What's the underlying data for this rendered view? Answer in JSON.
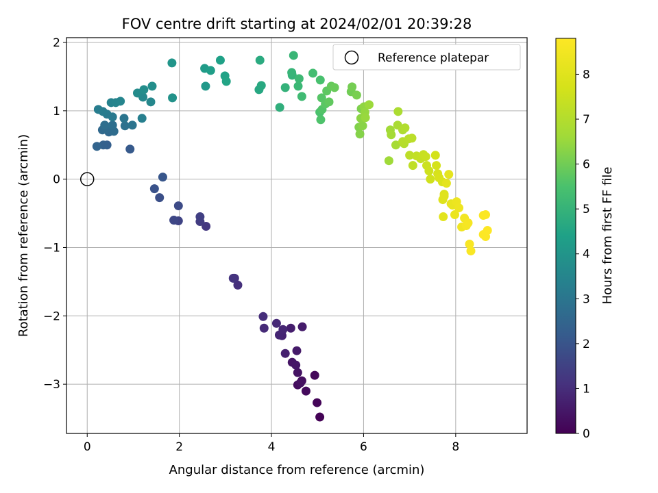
{
  "chart_data": {
    "type": "scatter",
    "title": "FOV centre drift starting at 2024/02/01 20:39:28",
    "xlabel": "Angular distance from reference (arcmin)",
    "ylabel": "Rotation from reference (arcmin)",
    "xlim": [
      -0.45,
      9.55
    ],
    "ylim": [
      -3.72,
      2.07
    ],
    "xticks": [
      0,
      2,
      4,
      6,
      8
    ],
    "yticks": [
      -3,
      -2,
      -1,
      0,
      1,
      2
    ],
    "grid": true,
    "legend": {
      "placement": "upper right",
      "entries": [
        "Reference platepar"
      ]
    },
    "reference_point": {
      "label": "Reference platepar",
      "x": 0,
      "y": 0
    },
    "colorbar": {
      "label": "Hours from first FF file",
      "min": 0,
      "max": 8.8,
      "ticks": [
        0,
        1,
        2,
        3,
        4,
        5,
        6,
        7,
        8
      ],
      "colormap": "viridis"
    },
    "points": [
      [
        5.05,
        -3.48,
        0.05
      ],
      [
        4.99,
        -3.27,
        0.1
      ],
      [
        4.94,
        -2.87,
        0.15
      ],
      [
        4.75,
        -3.1,
        0.2
      ],
      [
        4.57,
        -3.01,
        0.25
      ],
      [
        4.66,
        -2.95,
        0.3
      ],
      [
        4.63,
        -2.98,
        0.35
      ],
      [
        4.57,
        -2.83,
        0.4
      ],
      [
        4.45,
        -2.68,
        0.45
      ],
      [
        4.53,
        -2.72,
        0.5
      ],
      [
        4.55,
        -2.51,
        0.55
      ],
      [
        4.67,
        -2.16,
        0.6
      ],
      [
        4.42,
        -2.18,
        0.65
      ],
      [
        4.3,
        -2.55,
        0.7
      ],
      [
        4.23,
        -2.29,
        0.75
      ],
      [
        4.17,
        -2.28,
        0.8
      ],
      [
        4.25,
        -2.2,
        0.85
      ],
      [
        4.11,
        -2.11,
        0.9
      ],
      [
        3.84,
        -2.18,
        0.95
      ],
      [
        3.82,
        -2.01,
        1.0
      ],
      [
        3.27,
        -1.55,
        1.05
      ],
      [
        3.2,
        -1.45,
        1.1
      ],
      [
        3.17,
        -1.45,
        1.15
      ],
      [
        2.58,
        -0.69,
        1.25
      ],
      [
        2.45,
        -0.62,
        1.35
      ],
      [
        2.45,
        -0.55,
        1.45
      ],
      [
        1.98,
        -0.61,
        1.55
      ],
      [
        1.88,
        -0.6,
        1.65
      ],
      [
        1.98,
        -0.39,
        1.75
      ],
      [
        1.57,
        -0.27,
        1.85
      ],
      [
        1.46,
        -0.14,
        1.95
      ],
      [
        1.64,
        0.03,
        2.05
      ],
      [
        0.93,
        0.44,
        2.15
      ],
      [
        0.43,
        0.5,
        2.3
      ],
      [
        0.35,
        0.5,
        2.35
      ],
      [
        0.21,
        0.48,
        2.45
      ],
      [
        0.47,
        0.69,
        2.55
      ],
      [
        0.33,
        0.72,
        2.6
      ],
      [
        0.4,
        0.73,
        2.65
      ],
      [
        0.58,
        0.7,
        2.7
      ],
      [
        0.38,
        0.79,
        2.75
      ],
      [
        0.55,
        0.79,
        2.8
      ],
      [
        0.82,
        0.78,
        2.85
      ],
      [
        0.98,
        0.79,
        2.95
      ],
      [
        0.8,
        0.89,
        3.0
      ],
      [
        0.55,
        0.91,
        3.1
      ],
      [
        0.43,
        0.95,
        3.15
      ],
      [
        0.34,
        0.99,
        3.2
      ],
      [
        0.24,
        1.02,
        3.25
      ],
      [
        1.19,
        0.89,
        3.3
      ],
      [
        0.52,
        1.12,
        3.4
      ],
      [
        0.62,
        1.12,
        3.45
      ],
      [
        0.72,
        1.14,
        3.5
      ],
      [
        1.38,
        1.13,
        3.55
      ],
      [
        1.21,
        1.2,
        3.6
      ],
      [
        1.09,
        1.26,
        3.7
      ],
      [
        1.23,
        1.31,
        3.75
      ],
      [
        1.41,
        1.36,
        3.8
      ],
      [
        1.85,
        1.19,
        3.9
      ],
      [
        1.84,
        1.7,
        4.0
      ],
      [
        2.57,
        1.36,
        4.1
      ],
      [
        2.55,
        1.62,
        4.2
      ],
      [
        2.68,
        1.59,
        4.3
      ],
      [
        2.89,
        1.74,
        4.4
      ],
      [
        2.99,
        1.51,
        4.45
      ],
      [
        3.02,
        1.43,
        4.5
      ],
      [
        3.73,
        1.31,
        4.6
      ],
      [
        3.78,
        1.37,
        4.65
      ],
      [
        3.75,
        1.74,
        4.7
      ],
      [
        4.18,
        1.05,
        4.85
      ],
      [
        4.3,
        1.34,
        4.95
      ],
      [
        4.45,
        1.52,
        5.0
      ],
      [
        4.44,
        1.56,
        5.05
      ],
      [
        4.48,
        1.81,
        5.1
      ],
      [
        4.58,
        1.36,
        5.15
      ],
      [
        4.6,
        1.47,
        5.2
      ],
      [
        4.66,
        1.21,
        5.25
      ],
      [
        4.9,
        1.55,
        5.35
      ],
      [
        5.06,
        1.45,
        5.45
      ],
      [
        5.05,
        0.98,
        5.5
      ],
      [
        5.07,
        0.87,
        5.55
      ],
      [
        5.1,
        1.02,
        5.6
      ],
      [
        5.09,
        1.19,
        5.65
      ],
      [
        5.17,
        1.1,
        5.7
      ],
      [
        5.2,
        1.29,
        5.75
      ],
      [
        5.25,
        1.13,
        5.8
      ],
      [
        5.3,
        1.36,
        5.85
      ],
      [
        5.37,
        1.34,
        5.9
      ],
      [
        5.73,
        1.28,
        6.0
      ],
      [
        5.75,
        1.35,
        6.05
      ],
      [
        5.85,
        1.23,
        6.1
      ],
      [
        5.95,
        1.03,
        6.15
      ],
      [
        5.9,
        0.76,
        6.2
      ],
      [
        5.92,
        0.66,
        6.25
      ],
      [
        5.98,
        0.78,
        6.3
      ],
      [
        5.94,
        0.89,
        6.35
      ],
      [
        6.01,
        1.06,
        6.4
      ],
      [
        6.03,
        0.98,
        6.45
      ],
      [
        6.04,
        0.9,
        6.5
      ],
      [
        6.12,
        1.09,
        6.55
      ],
      [
        6.55,
        0.27,
        6.6
      ],
      [
        6.58,
        0.72,
        6.65
      ],
      [
        6.6,
        0.65,
        6.7
      ],
      [
        6.7,
        0.5,
        6.75
      ],
      [
        6.74,
        0.79,
        6.8
      ],
      [
        6.75,
        0.99,
        6.85
      ],
      [
        6.85,
        0.72,
        6.9
      ],
      [
        6.9,
        0.75,
        6.95
      ],
      [
        6.88,
        0.52,
        7.0
      ],
      [
        6.85,
        0.55,
        7.05
      ],
      [
        6.98,
        0.59,
        7.1
      ],
      [
        7.05,
        0.6,
        7.15
      ],
      [
        7.0,
        0.35,
        7.2
      ],
      [
        7.07,
        0.2,
        7.25
      ],
      [
        7.15,
        0.34,
        7.3
      ],
      [
        7.24,
        0.3,
        7.35
      ],
      [
        7.3,
        0.36,
        7.4
      ],
      [
        7.35,
        0.33,
        7.45
      ],
      [
        7.37,
        0.2,
        7.5
      ],
      [
        7.42,
        0.12,
        7.55
      ],
      [
        7.45,
        0.0,
        7.6
      ],
      [
        7.56,
        0.35,
        7.65
      ],
      [
        7.58,
        0.2,
        7.7
      ],
      [
        7.61,
        0.08,
        7.75
      ],
      [
        7.64,
        0.02,
        7.8
      ],
      [
        7.71,
        -0.04,
        7.85
      ],
      [
        7.75,
        -0.22,
        7.9
      ],
      [
        7.72,
        -0.3,
        7.95
      ],
      [
        7.75,
        -0.25,
        8.0
      ],
      [
        7.73,
        -0.55,
        8.05
      ],
      [
        7.8,
        -0.06,
        8.1
      ],
      [
        7.85,
        0.07,
        8.15
      ],
      [
        7.9,
        -0.36,
        8.2
      ],
      [
        7.93,
        -0.38,
        8.25
      ],
      [
        7.98,
        -0.52,
        8.3
      ],
      [
        8.02,
        -0.33,
        8.35
      ],
      [
        8.07,
        -0.42,
        8.4
      ],
      [
        8.13,
        -0.7,
        8.45
      ],
      [
        8.19,
        -0.57,
        8.5
      ],
      [
        8.23,
        -0.68,
        8.55
      ],
      [
        8.27,
        -0.64,
        8.6
      ],
      [
        8.3,
        -0.95,
        8.65
      ],
      [
        8.33,
        -1.05,
        8.7
      ],
      [
        8.6,
        -0.53,
        8.72
      ],
      [
        8.65,
        -0.52,
        8.74
      ],
      [
        8.6,
        -0.81,
        8.76
      ],
      [
        8.65,
        -0.84,
        8.78
      ],
      [
        8.69,
        -0.75,
        8.8
      ]
    ]
  }
}
